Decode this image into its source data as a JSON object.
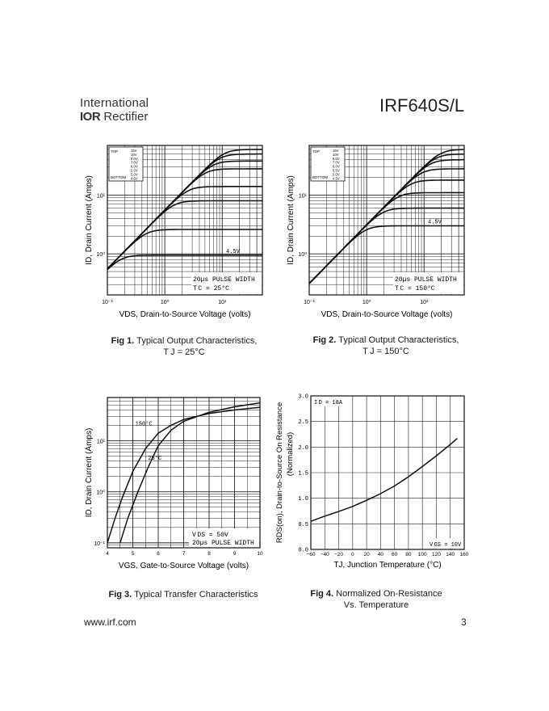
{
  "header": {
    "brand_line1": "International",
    "brand_line2_logo": "IOR",
    "brand_line2_text": "Rectifier",
    "part_number": "IRF640S/L"
  },
  "footer": {
    "url": "www.irf.com",
    "page": "3"
  },
  "chart_data": [
    {
      "id": "fig1",
      "type": "line",
      "scale": "log-log",
      "caption_num": "Fig 1.",
      "caption_text": "Typical Output Characteristics,",
      "caption_cond": "T J = 25°C",
      "xlabel": "VDS, Drain-to-Source Voltage (volts)",
      "ylabel": "ID, Drain Current (Amps)",
      "xlim": [
        0.1,
        50
      ],
      "ylim": [
        0.2,
        70
      ],
      "x_ticks": [
        "10⁻¹",
        "10⁰",
        "10¹"
      ],
      "y_ticks": [
        "10⁰",
        "10¹"
      ],
      "legend_top": "TOP",
      "legend_bottom": "BOTTOM",
      "vgs_list": [
        "15V",
        "10V",
        "8.0V",
        "7.0V",
        "6.0V",
        "5.5V",
        "5.0V",
        "4.5V"
      ],
      "curve_label": "4.5V",
      "note1": "20µs PULSE WIDTH",
      "note2": "T C = 25°C",
      "series": [
        {
          "name": "15V",
          "isat": 60
        },
        {
          "name": "10V",
          "isat": 50
        },
        {
          "name": "8.0V",
          "isat": 38
        },
        {
          "name": "7.0V",
          "isat": 28
        },
        {
          "name": "6.0V",
          "isat": 14
        },
        {
          "name": "5.5V",
          "isat": 8
        },
        {
          "name": "5.0V",
          "isat": 2.6
        },
        {
          "name": "4.5V",
          "isat": 0.95
        }
      ],
      "ron": 0.18
    },
    {
      "id": "fig2",
      "type": "line",
      "scale": "log-log",
      "caption_num": "Fig 2.",
      "caption_text": "Typical Output Characteristics,",
      "caption_cond": "T J = 150°C",
      "xlabel": "VDS, Drain-to-Source Voltage (volts)",
      "ylabel": "ID, Drain Current (Amps)",
      "xlim": [
        0.1,
        50
      ],
      "ylim": [
        0.2,
        70
      ],
      "x_ticks": [
        "10⁻¹",
        "10⁰",
        "10¹"
      ],
      "y_ticks": [
        "10⁰",
        "10¹"
      ],
      "legend_top": "TOP",
      "legend_bottom": "BOTTOM",
      "vgs_list": [
        "15V",
        "10V",
        "8.0V",
        "7.0V",
        "6.0V",
        "5.5V",
        "5.0V",
        "4.5V"
      ],
      "curve_label": "4.5V",
      "note1": "20µs PULSE WIDTH",
      "note2": "T C = 150°C",
      "series": [
        {
          "name": "15V",
          "isat": 60
        },
        {
          "name": "10V",
          "isat": 50
        },
        {
          "name": "8.0V",
          "isat": 40
        },
        {
          "name": "7.0V",
          "isat": 28
        },
        {
          "name": "6.0V",
          "isat": 18
        },
        {
          "name": "5.5V",
          "isat": 11
        },
        {
          "name": "5.0V",
          "isat": 6
        },
        {
          "name": "4.5V",
          "isat": 3
        }
      ],
      "ron": 0.32
    },
    {
      "id": "fig3",
      "type": "line",
      "scale": "log-y",
      "caption_num": "Fig 3.",
      "caption_text": "Typical Transfer Characteristics",
      "xlabel": "VGS, Gate-to-Source Voltage (volts)",
      "ylabel": "ID, Drain Current (Amps)",
      "xlim": [
        4,
        10
      ],
      "ylim": [
        0.08,
        70
      ],
      "x_ticks": [
        "4",
        "5",
        "6",
        "7",
        "8",
        "9",
        "10"
      ],
      "y_ticks": [
        "10⁻¹",
        "10⁰",
        "10¹"
      ],
      "note1": "V DS = 50V",
      "note2": "20µs PULSE WIDTH",
      "series": [
        {
          "name": "150°C",
          "x": [
            4.0,
            4.3,
            4.6,
            5.0,
            5.5,
            6.0,
            6.5,
            7.0,
            8.0,
            9.0,
            10.0
          ],
          "y": [
            0.1,
            0.3,
            0.8,
            2.5,
            7,
            14,
            20,
            26,
            34,
            40,
            45
          ]
        },
        {
          "name": "25°C",
          "x": [
            4.5,
            4.8,
            5.2,
            5.6,
            6.0,
            6.5,
            7.0,
            8.0,
            9.0,
            10.0
          ],
          "y": [
            0.1,
            0.3,
            1.0,
            3.0,
            8,
            16,
            24,
            36,
            46,
            55
          ]
        }
      ]
    },
    {
      "id": "fig4",
      "type": "line",
      "scale": "linear",
      "caption_num": "Fig 4.",
      "caption_text": "Normalized On-Resistance",
      "caption_cond": "Vs. Temperature",
      "xlabel": "TJ, Junction Temperature (°C)",
      "ylabel": "RDS(on), Drain-to-Source On Resistance",
      "ylabel2": "(Normalized)",
      "xlim": [
        -60,
        160
      ],
      "ylim": [
        0,
        3.0
      ],
      "x_ticks": [
        "−60",
        "−40",
        "−20",
        "0",
        "20",
        "40",
        "60",
        "80",
        "100",
        "120",
        "140",
        "160"
      ],
      "y_ticks": [
        "0.0",
        "0.5",
        "1.0",
        "1.5",
        "2.0",
        "2.5",
        "3.0"
      ],
      "note_id": "I D = 18A",
      "note_vgs": "V GS = 10V",
      "series": [
        {
          "name": "RDS(on)",
          "x": [
            -60,
            -40,
            -20,
            0,
            20,
            40,
            60,
            80,
            100,
            120,
            140,
            150
          ],
          "y": [
            0.55,
            0.65,
            0.74,
            0.84,
            0.96,
            1.09,
            1.24,
            1.42,
            1.62,
            1.83,
            2.05,
            2.17
          ]
        }
      ]
    }
  ]
}
